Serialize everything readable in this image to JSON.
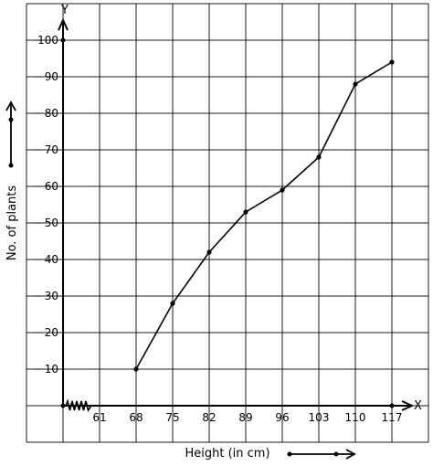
{
  "chart_data": {
    "type": "line",
    "title": "",
    "xlabel": "Height (in cm)",
    "ylabel": "No. of plants",
    "x_axis_letter": "X",
    "y_axis_letter": "Y",
    "x_tick_labels": [
      "61",
      "68",
      "75",
      "82",
      "89",
      "96",
      "103",
      "110",
      "117"
    ],
    "y_tick_labels": [
      "10",
      "20",
      "30",
      "40",
      "50",
      "60",
      "70",
      "80",
      "90",
      "100"
    ],
    "xlim": [
      54,
      124
    ],
    "ylim": [
      -10,
      110
    ],
    "x_axis_break": true,
    "grid": true,
    "series": [
      {
        "x": [
          68,
          75,
          82,
          89,
          96,
          103,
          110,
          117
        ],
        "y": [
          10,
          28,
          42,
          53,
          59,
          68,
          88,
          94
        ],
        "color": "#000000"
      }
    ]
  }
}
